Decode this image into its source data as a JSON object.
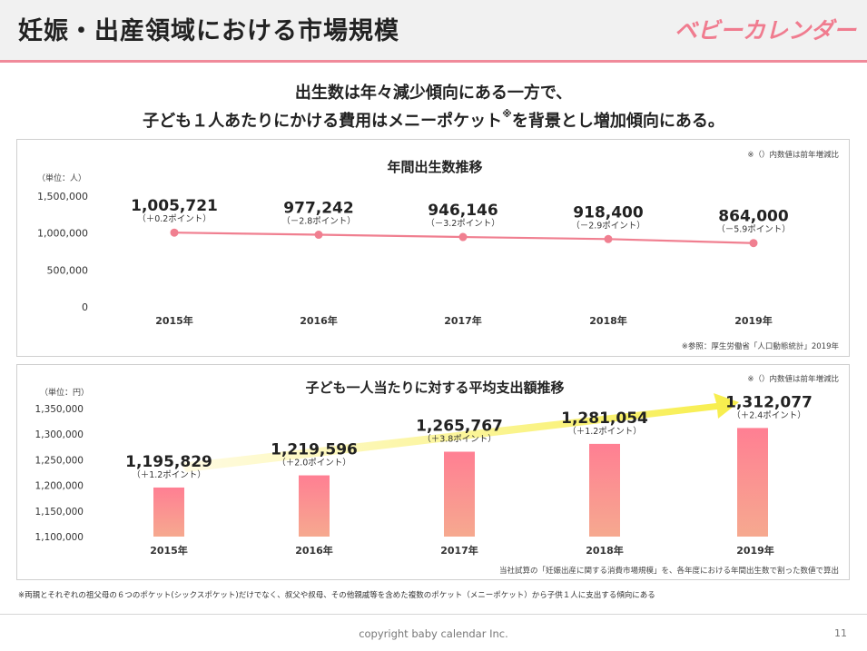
{
  "header": {
    "title": "妊娠・出産領域における市場規模",
    "brand": "ベビーカレンダー"
  },
  "headline": {
    "line1": "出生数は年々減少傾向にある一方で、",
    "line2_pre": "子ども１人あたりにかける費用はメニーポケット",
    "line2_mark": "※",
    "line2_post": "を背景とし増加傾向にある。"
  },
  "colors": {
    "accent": "#f08a9a",
    "line": "#f07f90",
    "bar_top": "#ff7f93",
    "bar_bottom": "#f6a98f",
    "arrow": "#f7ee4a"
  },
  "chart_data": [
    {
      "type": "line",
      "title": "年間出生数推移",
      "unit_label": "（単位：人）",
      "note": "※（）内数値は前年増減比",
      "source": "※参照：厚生労働省「人口動態統計」2019年",
      "categories": [
        "2015年",
        "2016年",
        "2017年",
        "2018年",
        "2019年"
      ],
      "values": [
        1005721,
        977242,
        946146,
        918400,
        864000
      ],
      "value_labels": [
        "1,005,721",
        "977,242",
        "946,146",
        "918,400",
        "864,000"
      ],
      "change_labels": [
        "（＋0.2ポイント）",
        "（－2.8ポイント）",
        "（－3.2ポイント）",
        "（－2.9ポイント）",
        "（－5.9ポイント）"
      ],
      "yticks": [
        0,
        500000,
        1000000,
        1500000
      ],
      "ytick_labels": [
        "0",
        "500,000",
        "1,000,000",
        "1,500,000"
      ],
      "ylim": [
        0,
        1500000
      ]
    },
    {
      "type": "bar",
      "title": "子ども一人当たりに対する平均支出額推移",
      "unit_label": "（単位：円）",
      "note": "※（）内数値は前年増減比",
      "source": "当社試算の「妊娠出産に関する消費市場規模」を、各年度における年間出生数で割った数値で算出",
      "categories": [
        "2015年",
        "2016年",
        "2017年",
        "2018年",
        "2019年"
      ],
      "values": [
        1195829,
        1219596,
        1265767,
        1281054,
        1312077
      ],
      "value_labels": [
        "1,195,829",
        "1,219,596",
        "1,265,767",
        "1,281,054",
        "1,312,077"
      ],
      "change_labels": [
        "（＋1.2ポイント）",
        "（＋2.0ポイント）",
        "（＋3.8ポイント）",
        "（＋1.2ポイント）",
        "（＋2.4ポイント）"
      ],
      "yticks": [
        1100000,
        1150000,
        1200000,
        1250000,
        1300000,
        1350000
      ],
      "ytick_labels": [
        "1,100,000",
        "1,150,000",
        "1,200,000",
        "1,250,000",
        "1,300,000",
        "1,350,000"
      ],
      "ylim": [
        1100000,
        1350000
      ]
    }
  ],
  "footnote": "※両親とそれぞれの祖父母の６つのポケット(シックスポケット)だけでなく、叔父や叔母、その他親戚等を含めた複数のポケット（メニーポケット）から子供１人に支出する傾向にある",
  "footer": {
    "copyright": "copyright baby calendar Inc.",
    "page": "11"
  }
}
